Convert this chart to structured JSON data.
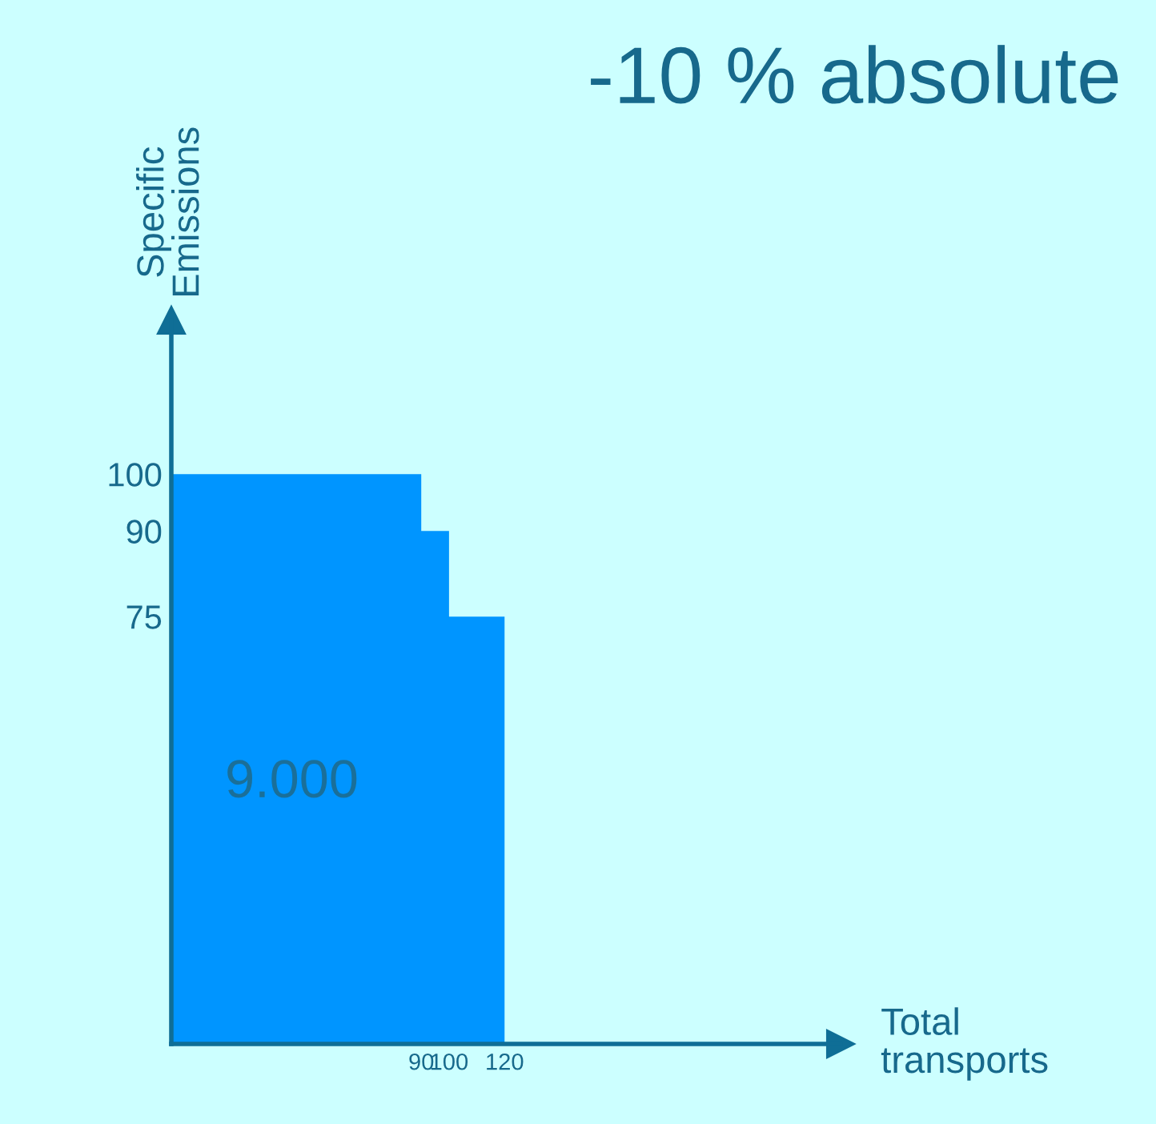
{
  "chart_data": {
    "type": "area",
    "title": "-10 % absolute",
    "xlabel": "Total\ntransports",
    "ylabel": "Specific\nEmissions",
    "x": [
      0,
      90,
      90,
      100,
      100,
      120
    ],
    "series": [
      {
        "color": "#0095ff",
        "values": [
          100,
          100,
          90,
          90,
          75,
          75
        ]
      }
    ],
    "xlim": [
      0,
      241
    ],
    "ylim": [
      0,
      127
    ],
    "xticks": [
      90,
      100,
      120
    ],
    "yticks": [
      100,
      90,
      75
    ],
    "annotations": [
      "9.000"
    ],
    "grid": false,
    "legend": false
  }
}
